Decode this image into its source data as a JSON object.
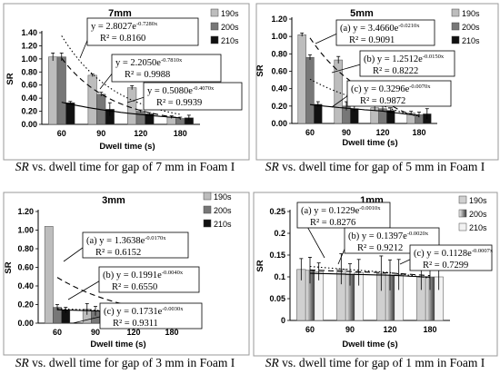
{
  "chart_data": [
    {
      "type": "bar",
      "title": "7mm",
      "xlabel": "Dwell time (s)",
      "ylabel": "SR",
      "categories": [
        "60",
        "90",
        "120",
        "180"
      ],
      "ylim": [
        0,
        1.4
      ],
      "yticks": [
        "0.00",
        "0.20",
        "0.40",
        "0.60",
        "0.80",
        "1.00",
        "1.20",
        "1.40"
      ],
      "legend_position": "top-right",
      "series": [
        {
          "name": "190s",
          "values": [
            1.03,
            0.75,
            0.56,
            0.11
          ],
          "errors": [
            0.06,
            0.02,
            0.03,
            0.02
          ],
          "color": "#bdbdbd"
        },
        {
          "name": "200s",
          "values": [
            1.03,
            0.46,
            0.2,
            0.09
          ],
          "errors": [
            0.06,
            0.03,
            0.02,
            0.02
          ],
          "color": "#777777"
        },
        {
          "name": "210s",
          "values": [
            0.33,
            0.23,
            0.16,
            0.1
          ],
          "errors": [
            0.02,
            0.1,
            0.02,
            0.04
          ],
          "color": "#111111"
        }
      ],
      "trendlines": [
        {
          "equation": "y = 2.8027e",
          "exponent": "-0.7280x",
          "r2": "R² = 0.8160",
          "style": "dotted",
          "a": 2.8027,
          "b": -0.728
        },
        {
          "equation": "y = 2.2050e",
          "exponent": "-0.7810x",
          "r2": "R² = 0.9988",
          "style": "dashed",
          "a": 2.205,
          "b": -0.781
        },
        {
          "equation": "y = 0.5080e",
          "exponent": "-0.4070x",
          "r2": "R² = 0.9939",
          "style": "solid",
          "a": 0.508,
          "b": -0.407
        }
      ],
      "caption_italic": "SR",
      "caption_rest": " vs. dwell time for gap of 7 mm in Foam I"
    },
    {
      "type": "bar",
      "title": "5mm",
      "xlabel": "Dwell time (s)",
      "ylabel": "SR",
      "categories": [
        "60",
        "90",
        "120",
        "180"
      ],
      "ylim": [
        0,
        1.2
      ],
      "yticks": [
        "0.00",
        "0.20",
        "0.40",
        "0.60",
        "0.80",
        "1.00",
        "1.20"
      ],
      "legend_position": "top-right",
      "series": [
        {
          "name": "190s",
          "values": [
            1.02,
            0.73,
            0.18,
            0.12
          ],
          "errors": [
            0.02,
            0.04,
            0.03,
            0.02
          ],
          "color": "#bdbdbd"
        },
        {
          "name": "200s",
          "values": [
            0.76,
            0.2,
            0.17,
            0.1
          ],
          "errors": [
            0.03,
            0.05,
            0.03,
            0.03
          ],
          "color": "#777777"
        },
        {
          "name": "210s",
          "values": [
            0.22,
            0.17,
            0.15,
            0.11
          ],
          "errors": [
            0.03,
            0.03,
            0.03,
            0.06
          ],
          "color": "#111111"
        }
      ],
      "trendlines": [
        {
          "equation": "(a) y = 3.4660e",
          "exponent": "-0.0210x",
          "r2": "R² = 0.9091",
          "style": "dashed",
          "a": 3.466,
          "b": -0.021
        },
        {
          "equation": "(b) y = 1.2512e",
          "exponent": "-0.0150x",
          "r2": "R² = 0.8222",
          "style": "dotted",
          "a": 1.2512,
          "b": -0.015
        },
        {
          "equation": "(c) y = 0.3296e",
          "exponent": "-0.0070x",
          "r2": "R² = 0.9872",
          "style": "solid",
          "a": 0.3296,
          "b": -0.007
        }
      ],
      "caption_italic": "SR",
      "caption_rest": " vs. dwell time for gap of 5 mm in Foam I"
    },
    {
      "type": "bar",
      "title": "3mm",
      "xlabel": "Dwell time (s)",
      "ylabel": "SR",
      "categories": [
        "60",
        "90",
        "120",
        "180"
      ],
      "ylim": [
        0,
        1.2
      ],
      "yticks": [
        "0.00",
        "0.20",
        "0.40",
        "0.60",
        "0.80",
        "1.00",
        "1.20"
      ],
      "legend_position": "top-right",
      "series": [
        {
          "name": "190s",
          "values": [
            1.04,
            0.15,
            0.12,
            0.1
          ],
          "errors": [
            0.0,
            0.06,
            0.05,
            0.02
          ],
          "color": "#bdbdbd"
        },
        {
          "name": "200s",
          "values": [
            0.17,
            0.13,
            0.11,
            0.1
          ],
          "errors": [
            0.03,
            0.05,
            0.05,
            0.03
          ],
          "color": "#777777"
        },
        {
          "name": "210s",
          "values": [
            0.14,
            0.13,
            0.11,
            0.1
          ],
          "errors": [
            0.03,
            0.05,
            0.07,
            0.03
          ],
          "color": "#111111"
        }
      ],
      "trendlines": [
        {
          "equation": "(a) y = 1.3638e",
          "exponent": "-0.0170x",
          "r2": "R² = 0.6152",
          "style": "dashed",
          "a": 1.3638,
          "b": -0.017
        },
        {
          "equation": "(b) y = 0.1991e",
          "exponent": "-0.0040x",
          "r2": "R² = 0.6550",
          "style": "dotted",
          "a": 0.1991,
          "b": -0.004
        },
        {
          "equation": "(c) y = 0.1731e",
          "exponent": "-0.0030x",
          "r2": "R² = 0.9311",
          "style": "solid",
          "a": 0.1731,
          "b": -0.003
        }
      ],
      "caption_italic": "SR",
      "caption_rest": " vs. dwell time for gap of 3 mm in Foam I"
    },
    {
      "type": "bar",
      "title": "1mm",
      "xlabel": "Dwell time (s)",
      "ylabel": "SR",
      "categories": [
        "60",
        "90",
        "120",
        "180"
      ],
      "ylim": [
        0,
        0.25
      ],
      "yticks": [
        "0",
        "0.05",
        "0.1",
        "0.15",
        "0.2",
        "0.25"
      ],
      "legend_position": "top-right",
      "series": [
        {
          "name": "190s",
          "values": [
            0.117,
            0.118,
            0.108,
            0.1
          ],
          "errors": [
            0.025,
            0.035,
            0.04,
            0.03
          ],
          "color": "#d0d0d0"
        },
        {
          "name": "200s",
          "values": [
            0.115,
            0.105,
            0.104,
            0.1
          ],
          "errors": [
            0.03,
            0.025,
            0.035,
            0.03
          ],
          "color": "#777777"
        },
        {
          "name": "210s",
          "values": [
            0.112,
            0.11,
            0.105,
            0.1
          ],
          "errors": [
            0.02,
            0.03,
            0.035,
            0.03
          ],
          "color": "#f2f2f2"
        }
      ],
      "trendlines": [
        {
          "equation": "(a) y = 0.1229e",
          "exponent": "-0.0010x",
          "r2": "R² = 0.8276",
          "style": "dashed",
          "a": 0.1229,
          "b": -0.001
        },
        {
          "equation": "(b) y = 0.1397e",
          "exponent": "-0.0020x",
          "r2": "R² = 0.9212",
          "style": "dotted",
          "a": 0.1397,
          "b": -0.002
        },
        {
          "equation": "(c) y = 0.1128e",
          "exponent": "-0.0007x",
          "r2": "R² = 0.7299",
          "style": "solid",
          "a": 0.1128,
          "b": -0.0007
        }
      ],
      "caption_italic": "SR",
      "caption_rest": " vs. dwell time for gap of 1 mm in Foam I"
    }
  ]
}
